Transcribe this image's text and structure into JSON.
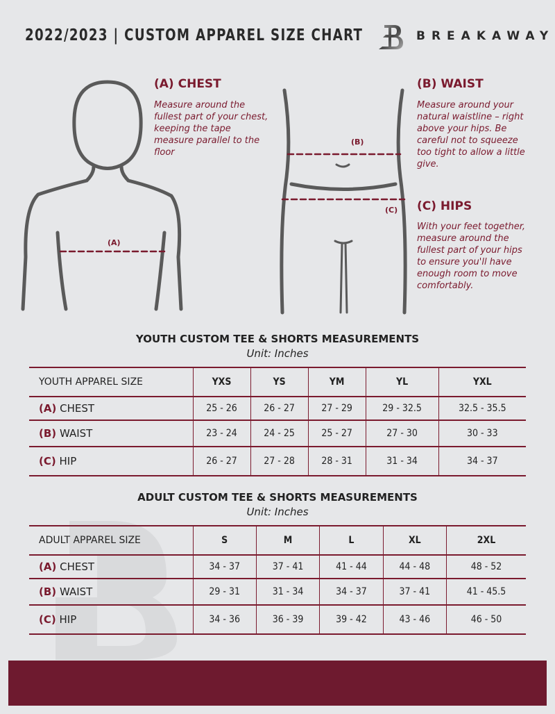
{
  "header": {
    "title": "2022/2023  |  CUSTOM APPAREL SIZE CHART",
    "brand": "BREAKAWAY"
  },
  "measures": {
    "chest": {
      "heading": "(A) CHEST",
      "text": "Measure around the fullest part of your chest, keeping the tape measure parallel to the floor",
      "marker": "(A)"
    },
    "waist": {
      "heading": "(B) WAIST",
      "text": "Measure around your natural waistline – right above your hips. Be careful not to squeeze too tight to allow a little give.",
      "marker": "(B)"
    },
    "hips": {
      "heading": "(C) HIPS",
      "text": "With your feet together, measure around the fullest part of your hips to ensure you'll have enough room to move comfortably.",
      "marker": "(C)"
    }
  },
  "youth": {
    "title": "YOUTH CUSTOM TEE & SHORTS MEASUREMENTS",
    "unit": "Unit: Inches",
    "header": "YOUTH APPAREL SIZE",
    "sizes": [
      "YXS",
      "YS",
      "YM",
      "YL",
      "YXL"
    ],
    "rows": [
      {
        "letter": "(A)",
        "label": "CHEST",
        "values": [
          "25 - 26",
          "26 - 27",
          "27 - 29",
          "29 - 32.5",
          "32.5 - 35.5"
        ]
      },
      {
        "letter": "(B)",
        "label": "WAIST",
        "values": [
          "23 - 24",
          "24 - 25",
          "25 - 27",
          "27 - 30",
          "30 - 33"
        ]
      },
      {
        "letter": "(C)",
        "label": "HIP",
        "values": [
          "26 - 27",
          "27 - 28",
          "28 - 31",
          "31 - 34",
          "34 - 37"
        ]
      }
    ]
  },
  "adult": {
    "title": "ADULT CUSTOM TEE & SHORTS MEASUREMENTS",
    "unit": "Unit: Inches",
    "header": "ADULT APPAREL SIZE",
    "sizes": [
      "S",
      "M",
      "L",
      "XL",
      "2XL"
    ],
    "rows": [
      {
        "letter": "(A)",
        "label": "CHEST",
        "values": [
          "34 - 37",
          "37 - 41",
          "41 - 44",
          "44 - 48",
          "48 - 52"
        ]
      },
      {
        "letter": "(B)",
        "label": "WAIST",
        "values": [
          "29 - 31",
          "31 - 34",
          "34 - 37",
          "37 - 41",
          "41 - 45.5"
        ]
      },
      {
        "letter": "(C)",
        "label": "HIP",
        "values": [
          "34 - 36",
          "36 - 39",
          "39 - 42",
          "43 - 46",
          "46 - 50"
        ]
      }
    ]
  },
  "colors": {
    "accent": "#7a1a2e",
    "background": "#e6e7e9",
    "footer": "#6e1a2f"
  }
}
